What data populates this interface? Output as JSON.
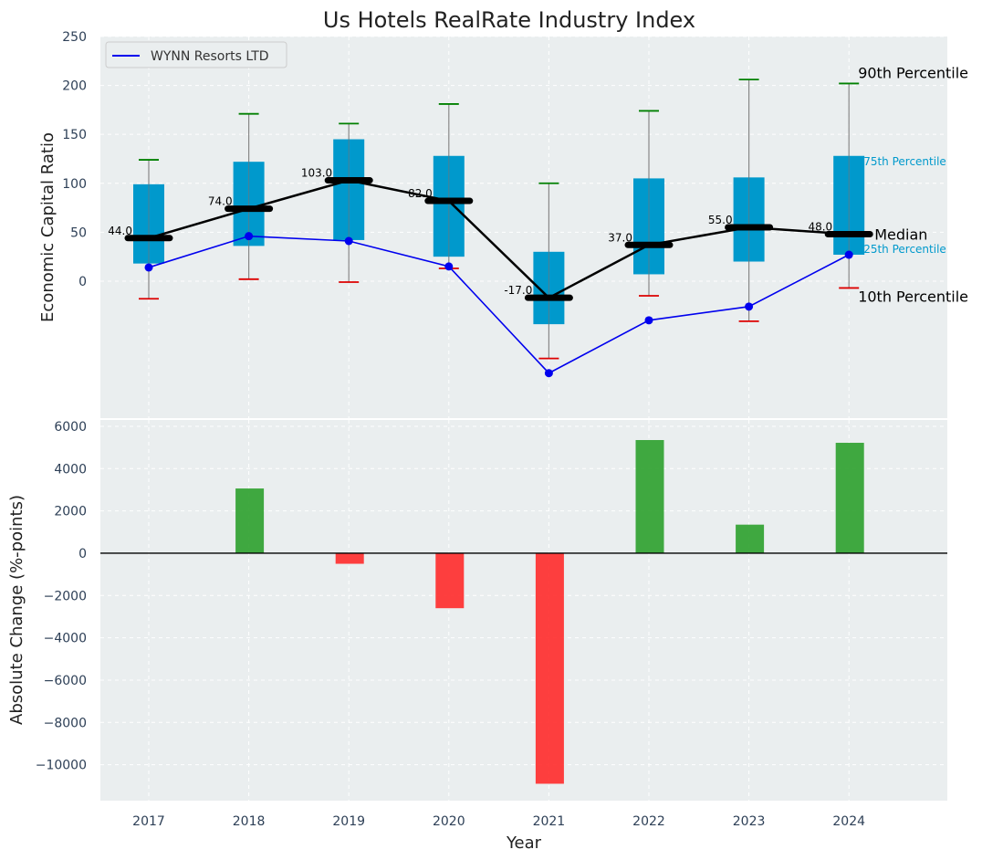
{
  "chart_data": [
    {
      "type": "box",
      "title": "Us Hotels RealRate Industry Index",
      "ylabel": "Economic Capital Ratio",
      "ylim": [
        -140,
        250
      ],
      "yticks": [
        0,
        50,
        100,
        150,
        200,
        250
      ],
      "grid": true,
      "legend_position": "top-left",
      "categories": [
        "2017",
        "2018",
        "2019",
        "2020",
        "2021",
        "2022",
        "2023",
        "2024"
      ],
      "percentiles": {
        "p10": [
          -18,
          2,
          -1,
          13,
          -79,
          -15,
          -41,
          -7
        ],
        "p25": [
          18,
          36,
          42,
          25,
          -44,
          7,
          20,
          27
        ],
        "median": [
          44,
          74,
          103,
          82,
          -17,
          37,
          55,
          48
        ],
        "p75": [
          99,
          122,
          145,
          128,
          30,
          105,
          106,
          128
        ],
        "p90": [
          124,
          171,
          161,
          181,
          100,
          174,
          206,
          202
        ]
      },
      "median_labels": [
        "44.0",
        "74.0",
        "103.0",
        "82.0",
        "-17.0",
        "37.0",
        "55.0",
        "48.0"
      ],
      "series": [
        {
          "name": "WYNN Resorts LTD",
          "color": "#0000ee",
          "values": [
            14,
            46,
            41,
            15,
            -94,
            -40,
            -26,
            27
          ]
        }
      ],
      "annotations": {
        "p90": "90th Percentile",
        "p75": "75th Percentile",
        "median": "Median",
        "p25": "25th Percentile",
        "p10": "10th Percentile"
      },
      "colors": {
        "box": "#0099cc",
        "median": "#000000",
        "p90_cap": "#008000",
        "p10_cap": "#dd0000",
        "background": "#eaeeef"
      }
    },
    {
      "type": "bar",
      "xlabel": "Year",
      "ylabel": "Absolute Change (%-points)",
      "ylim": [
        -11700,
        6300
      ],
      "yticks": [
        -10000,
        -8000,
        -6000,
        -4000,
        -2000,
        0,
        2000,
        4000,
        6000
      ],
      "ytick_labels": [
        "−10000",
        "−8000",
        "−6000",
        "−4000",
        "−2000",
        "0",
        "2000",
        "4000",
        "6000"
      ],
      "grid": true,
      "categories": [
        "2017",
        "2018",
        "2019",
        "2020",
        "2021",
        "2022",
        "2023",
        "2024"
      ],
      "values": [
        0,
        3060,
        -500,
        -2600,
        -10900,
        5350,
        1350,
        5220
      ],
      "colors": {
        "positive": "#2ca02c",
        "negative": "#ff2a2a"
      }
    }
  ]
}
